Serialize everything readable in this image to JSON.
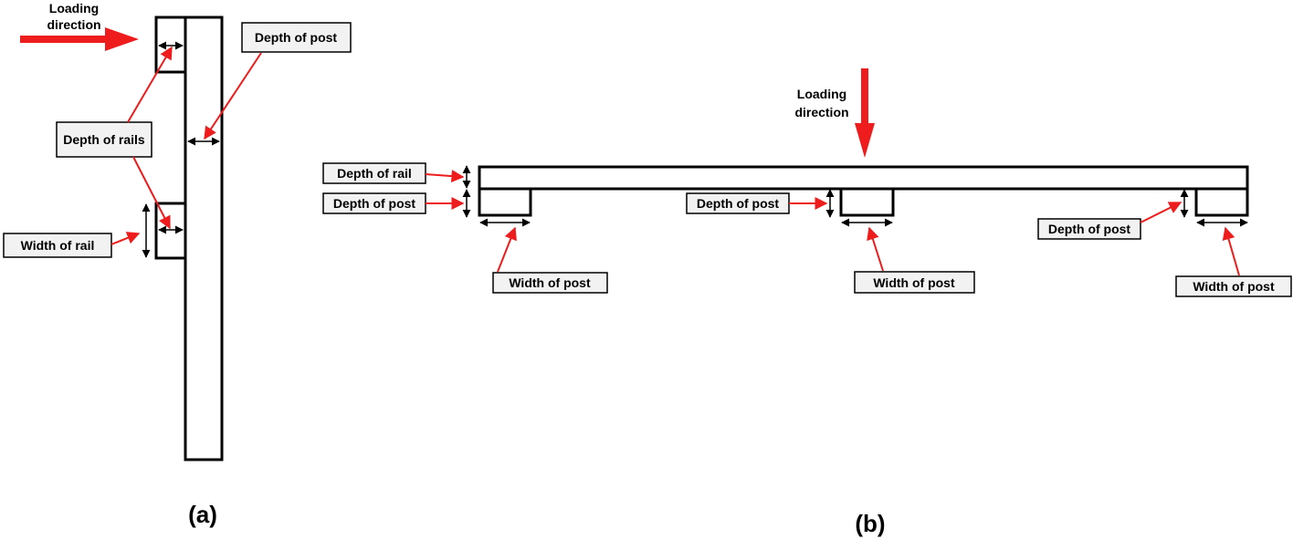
{
  "colors": {
    "pointer": "#ee1c1c",
    "line": "#000000",
    "label_box": "#f2f2f2",
    "load_arrow": "#ee1c1c"
  },
  "panel_a": {
    "caption": "(a)",
    "loading": {
      "line1": "Loading",
      "line2": "direction"
    },
    "labels": {
      "depth_of_post": "Depth of post",
      "depth_of_rails": "Depth of rails",
      "width_of_rail": "Width of rail"
    }
  },
  "panel_b": {
    "caption": "(b)",
    "loading": {
      "line1": "Loading",
      "line2": "direction"
    },
    "labels": {
      "depth_of_rail": "Depth of rail",
      "depth_of_post_left": "Depth of post",
      "depth_of_post_mid": "Depth of post",
      "depth_of_post_right": "Depth of post",
      "width_of_post_left": "Width of post",
      "width_of_post_mid": "Width of post",
      "width_of_post_right": "Width of post"
    }
  }
}
